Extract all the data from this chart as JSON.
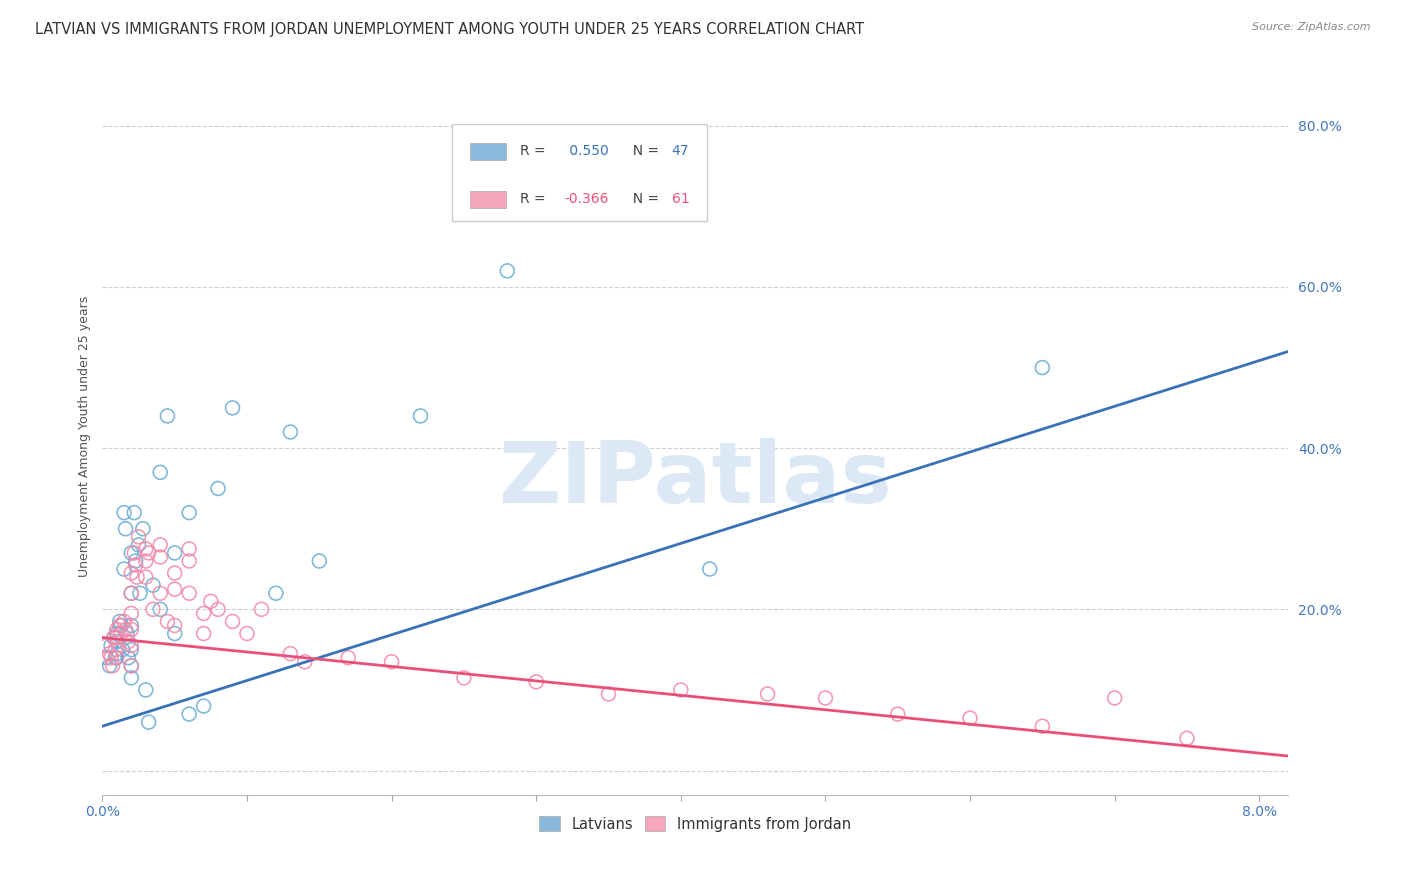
{
  "title": "LATVIAN VS IMMIGRANTS FROM JORDAN UNEMPLOYMENT AMONG YOUTH UNDER 25 YEARS CORRELATION CHART",
  "source": "Source: ZipAtlas.com",
  "ylabel": "Unemployment Among Youth under 25 years",
  "xlim": [
    0.0,
    0.082
  ],
  "ylim": [
    -0.03,
    0.86
  ],
  "xticks": [
    0.0,
    0.01,
    0.02,
    0.03,
    0.04,
    0.05,
    0.06,
    0.07,
    0.08
  ],
  "xticklabels_sparse": {
    "0.0": "0.0%",
    "0.08": "8.0%"
  },
  "yticks": [
    0.0,
    0.2,
    0.4,
    0.6,
    0.8
  ],
  "yticklabels": [
    "",
    "20.0%",
    "40.0%",
    "60.0%",
    "80.0%"
  ],
  "latvian_color": "#89badc",
  "latvian_edge": "#6aadd5",
  "jordan_color": "#f5a8bc",
  "jordan_edge": "#f08aaa",
  "blue_line_color": "#3a72b8",
  "pink_line_color": "#e8507a",
  "watermark_color": "#dce8f5",
  "background_color": "#ffffff",
  "grid_color": "#cccccc",
  "latvians_x": [
    0.0003,
    0.0005,
    0.0006,
    0.0008,
    0.0009,
    0.001,
    0.001,
    0.001,
    0.0012,
    0.0013,
    0.0014,
    0.0015,
    0.0015,
    0.0016,
    0.0017,
    0.0018,
    0.002,
    0.002,
    0.002,
    0.002,
    0.002,
    0.002,
    0.0022,
    0.0023,
    0.0025,
    0.0026,
    0.0028,
    0.003,
    0.0032,
    0.0035,
    0.004,
    0.004,
    0.0045,
    0.005,
    0.005,
    0.006,
    0.006,
    0.007,
    0.008,
    0.009,
    0.012,
    0.013,
    0.015,
    0.022,
    0.028,
    0.042,
    0.065
  ],
  "latvians_y": [
    0.14,
    0.13,
    0.155,
    0.165,
    0.14,
    0.17,
    0.16,
    0.145,
    0.185,
    0.18,
    0.15,
    0.32,
    0.25,
    0.3,
    0.17,
    0.14,
    0.27,
    0.22,
    0.18,
    0.15,
    0.13,
    0.115,
    0.32,
    0.26,
    0.28,
    0.22,
    0.3,
    0.1,
    0.06,
    0.23,
    0.37,
    0.2,
    0.44,
    0.27,
    0.17,
    0.32,
    0.07,
    0.08,
    0.35,
    0.45,
    0.22,
    0.42,
    0.26,
    0.44,
    0.62,
    0.25,
    0.5
  ],
  "jordan_x": [
    0.0003,
    0.0005,
    0.0006,
    0.0007,
    0.0008,
    0.0009,
    0.001,
    0.001,
    0.001,
    0.0012,
    0.0013,
    0.0015,
    0.0016,
    0.0018,
    0.002,
    0.002,
    0.002,
    0.002,
    0.002,
    0.002,
    0.0022,
    0.0023,
    0.0024,
    0.0025,
    0.003,
    0.003,
    0.003,
    0.0032,
    0.0035,
    0.004,
    0.004,
    0.004,
    0.0045,
    0.005,
    0.005,
    0.005,
    0.006,
    0.006,
    0.006,
    0.007,
    0.007,
    0.0075,
    0.008,
    0.009,
    0.01,
    0.011,
    0.013,
    0.014,
    0.017,
    0.02,
    0.025,
    0.03,
    0.035,
    0.04,
    0.046,
    0.05,
    0.055,
    0.06,
    0.065,
    0.07,
    0.075
  ],
  "jordan_y": [
    0.155,
    0.145,
    0.14,
    0.13,
    0.165,
    0.15,
    0.175,
    0.165,
    0.14,
    0.18,
    0.17,
    0.185,
    0.175,
    0.16,
    0.245,
    0.22,
    0.195,
    0.175,
    0.155,
    0.13,
    0.27,
    0.255,
    0.24,
    0.29,
    0.275,
    0.26,
    0.24,
    0.27,
    0.2,
    0.28,
    0.265,
    0.22,
    0.185,
    0.245,
    0.225,
    0.18,
    0.275,
    0.26,
    0.22,
    0.195,
    0.17,
    0.21,
    0.2,
    0.185,
    0.17,
    0.2,
    0.145,
    0.135,
    0.14,
    0.135,
    0.115,
    0.11,
    0.095,
    0.1,
    0.095,
    0.09,
    0.07,
    0.065,
    0.055,
    0.09,
    0.04
  ],
  "blue_line_x": [
    0.0,
    0.082
  ],
  "blue_line_y": [
    0.055,
    0.52
  ],
  "pink_line_x": [
    0.0,
    0.082
  ],
  "pink_line_y": [
    0.165,
    0.018
  ],
  "title_fontsize": 10.5,
  "axis_label_fontsize": 9,
  "tick_fontsize": 10,
  "legend_R_color_blue": "#3a72b8",
  "legend_R_color_pink": "#e8507a",
  "legend_N_color": "#333333"
}
